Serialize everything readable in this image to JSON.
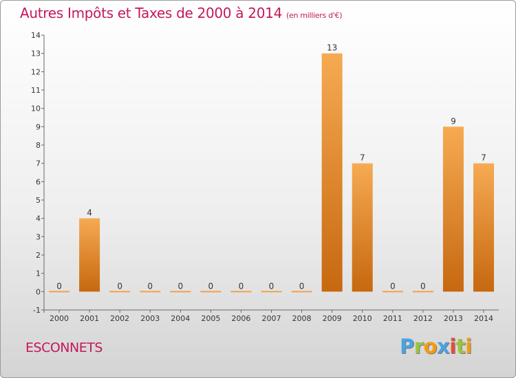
{
  "title": "Autres Impôts et Taxes de 2000 à 2014",
  "unit_label": "(en milliers d'€)",
  "commune": "ESCONNETS",
  "logo": [
    "P",
    "r",
    "o",
    "x",
    "i",
    "t",
    "i"
  ],
  "colors": {
    "title": "#c2185b",
    "bar_light": "#f5a54a",
    "bar_dark": "#c96a12",
    "axis": "#666666"
  },
  "chart_data": {
    "type": "bar",
    "title": "Autres Impôts et Taxes de 2000 à 2014",
    "xlabel": "",
    "ylabel": "",
    "categories": [
      "2000",
      "2001",
      "2002",
      "2003",
      "2004",
      "2005",
      "2006",
      "2007",
      "2008",
      "2009",
      "2010",
      "2011",
      "2012",
      "2013",
      "2014"
    ],
    "values": [
      0,
      4,
      0,
      0,
      0,
      0,
      0,
      0,
      0,
      13,
      7,
      0,
      0,
      9,
      7
    ],
    "data_labels": [
      "0",
      "4",
      "0",
      "0",
      "0",
      "0",
      "0",
      "0",
      "0",
      "13",
      "7",
      "0",
      "0",
      "9",
      "7"
    ],
    "ylim": [
      -1,
      14
    ],
    "y_ticks": [
      "-1",
      "0",
      "1",
      "2",
      "3",
      "4",
      "5",
      "6",
      "7",
      "8",
      "9",
      "10",
      "11",
      "12",
      "13",
      "14"
    ],
    "grid": false,
    "legend": "none"
  }
}
